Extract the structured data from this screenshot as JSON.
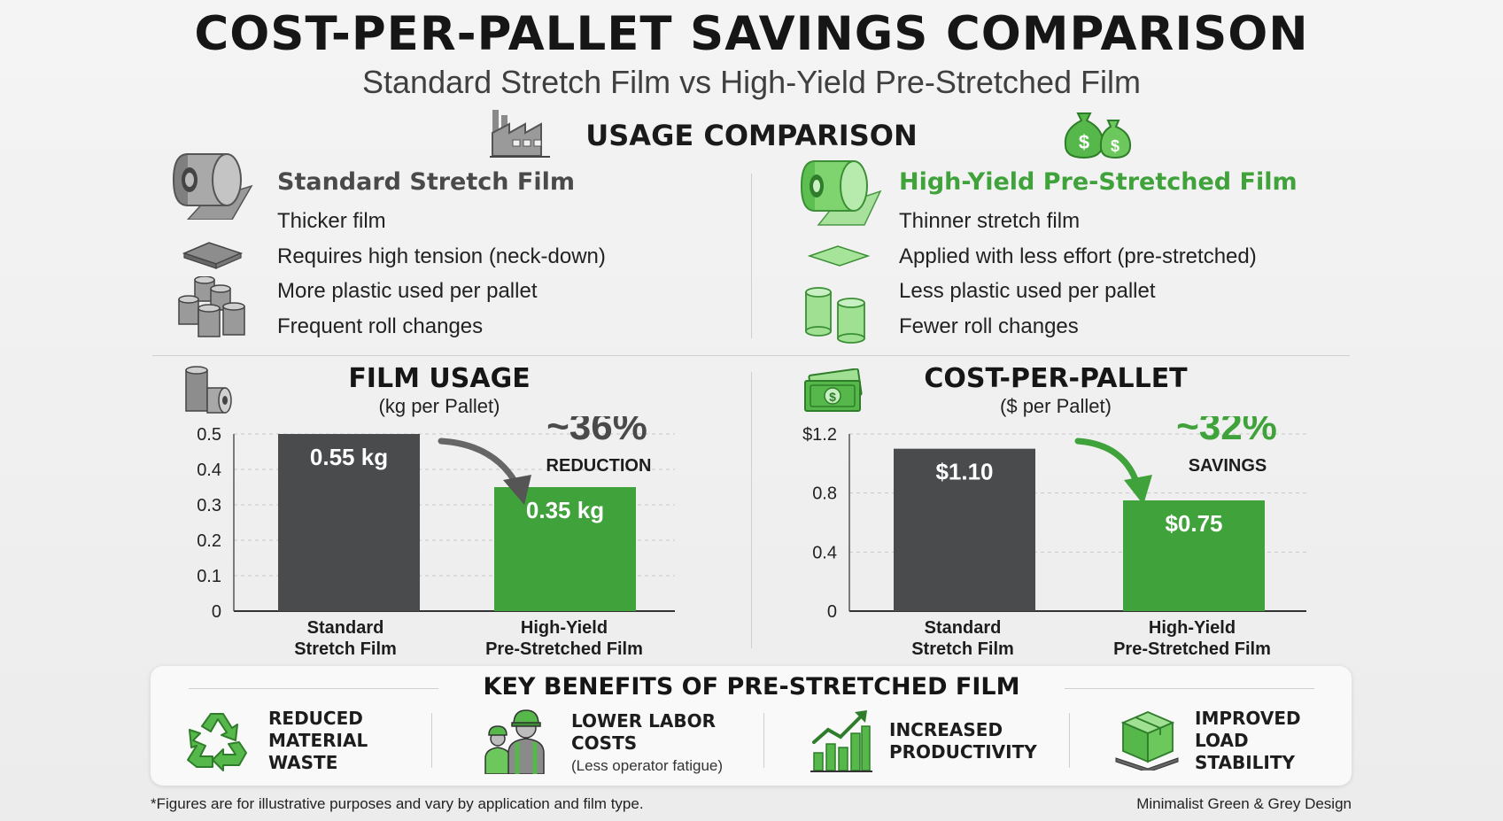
{
  "title": "COST-PER-PALLET SAVINGS COMPARISON",
  "subtitle": "Standard Stretch Film vs High-Yield Pre-Stretched Film",
  "usage_comparison": {
    "heading": "USAGE COMPARISON",
    "standard": {
      "title": "Standard Stretch Film",
      "features": [
        "Thicker film",
        "Requires high tension (neck-down)",
        "More plastic used per pallet",
        "Frequent roll changes"
      ]
    },
    "high_yield": {
      "title": "High-Yield Pre-Stretched Film",
      "features": [
        "Thinner stretch film",
        "Applied with less effort (pre-stretched)",
        "Less plastic used per pallet",
        "Fewer roll changes"
      ]
    }
  },
  "colors": {
    "grey_bar": "#4a4b4d",
    "green_bar": "#3fa23a",
    "green_text": "#3fa23a",
    "grey_text": "#4a4a4a"
  },
  "chart_data": [
    {
      "type": "bar",
      "title": "FILM USAGE",
      "subtitle": "(kg per Pallet)",
      "categories": [
        "Standard Stretch Film",
        "High-Yield Pre-Stretched Film"
      ],
      "category_lines": [
        [
          "Standard",
          "Stretch Film"
        ],
        [
          "High-Yield",
          "Pre-Stretched Film"
        ]
      ],
      "values": [
        0.55,
        0.35
      ],
      "data_labels": [
        "0.55 kg",
        "0.35 kg"
      ],
      "ylim": [
        0,
        0.5
      ],
      "yticks": [
        0,
        0.1,
        0.2,
        0.3,
        0.4,
        0.5
      ],
      "ytick_labels": [
        "0",
        "0.1",
        "0.2",
        "0.3",
        "0.4",
        "0.5"
      ],
      "grid": true,
      "annotation": {
        "value": "~36%",
        "label": "REDUCTION"
      }
    },
    {
      "type": "bar",
      "title": "COST-PER-PALLET",
      "subtitle": "($ per Pallet)",
      "categories": [
        "Standard Stretch Film",
        "High-Yield Pre-Stretched Film"
      ],
      "category_lines": [
        [
          "Standard",
          "Stretch Film"
        ],
        [
          "High-Yield",
          "Pre-Stretched Film"
        ]
      ],
      "values": [
        1.1,
        0.75
      ],
      "data_labels": [
        "$1.10",
        "$0.75"
      ],
      "ylim": [
        0,
        1.2
      ],
      "yticks": [
        0,
        0.4,
        0.8,
        1.2
      ],
      "ytick_labels": [
        "0",
        "0.4",
        "0.8",
        "$1.2"
      ],
      "grid": true,
      "annotation": {
        "value": "~32%",
        "label": "SAVINGS"
      }
    }
  ],
  "benefits": {
    "heading": "KEY BENEFITS OF PRE-STRETCHED FILM",
    "items": [
      {
        "lines": [
          "REDUCED",
          "MATERIAL",
          "WASTE"
        ],
        "note": "",
        "icon": "recycle-icon"
      },
      {
        "lines": [
          "LOWER LABOR",
          "COSTS"
        ],
        "note": "(Less operator fatigue)",
        "icon": "workers-icon"
      },
      {
        "lines": [
          "INCREASED",
          "PRODUCTIVITY"
        ],
        "note": "",
        "icon": "growth-chart-icon"
      },
      {
        "lines": [
          "IMPROVED",
          "LOAD",
          "STABILITY"
        ],
        "note": "",
        "icon": "pallet-box-icon"
      }
    ]
  },
  "footnote": "*Figures are for illustrative purposes and vary by application and film type.",
  "credit": "Minimalist Green & Grey Design"
}
